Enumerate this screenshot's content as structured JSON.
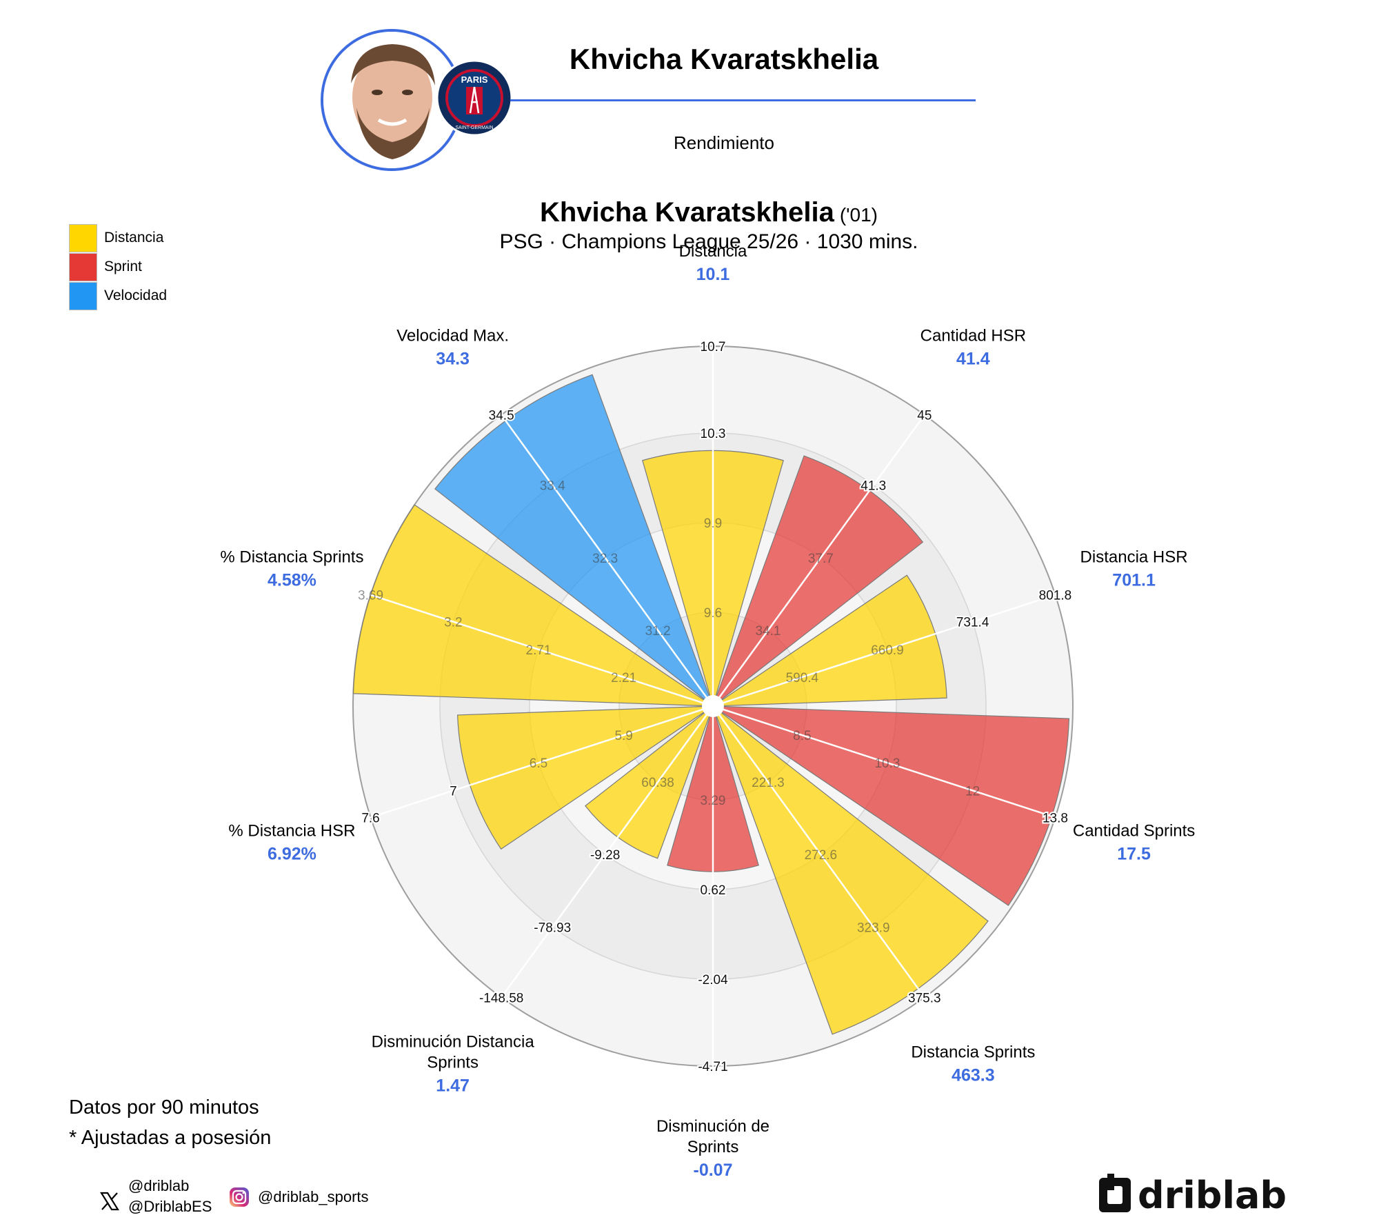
{
  "header": {
    "name": "Khvicha Kvaratskhelia",
    "subtitle": "Rendimiento",
    "badge_text": "PARIS",
    "badge_ring_text": "SAINT-GERMAIN"
  },
  "legend": [
    {
      "label": "Distancia",
      "color": "#ffd600"
    },
    {
      "label": "Sprint",
      "color": "#e53935"
    },
    {
      "label": "Velocidad",
      "color": "#2196f3"
    }
  ],
  "footnotes": [
    "Datos por 90 minutos",
    "* Ajustadas a posesión"
  ],
  "social": {
    "x_handles": [
      "@driblab",
      "@DriblabES"
    ],
    "instagram_handle": "@driblab_sports",
    "x_icon": "x-logo-icon",
    "instagram_icon": "instagram-icon"
  },
  "brand": {
    "logo": "driblab",
    "icon": "driblab-logo-icon"
  },
  "chart_data": {
    "type": "polar-bar",
    "title": "Khvicha Kvaratskhelia",
    "title_suffix": "('01)",
    "subtitle": "PSG · Champions League 25/26 · 1030 mins.",
    "categories": [
      {
        "label": [
          "Distancia"
        ],
        "value": 10.1,
        "display": "10.1",
        "group": "Distancia",
        "fill": 0.71,
        "ticks": [
          "9.6",
          "9.9",
          "10.3",
          "10.7"
        ]
      },
      {
        "label": [
          "Cantidad HSR"
        ],
        "value": 41.4,
        "display": "41.4",
        "group": "Sprint",
        "fill": 0.74,
        "ticks": [
          "34.1",
          "37.7",
          "41.3",
          "45"
        ]
      },
      {
        "label": [
          "Distancia HSR"
        ],
        "value": 701.1,
        "display": "701.1",
        "group": "Distancia",
        "fill": 0.65,
        "ticks": [
          "590.4",
          "660.9",
          "731.4",
          "801.8"
        ]
      },
      {
        "label": [
          "Cantidad Sprints"
        ],
        "value": 17.5,
        "display": "17.5",
        "group": "Sprint",
        "fill": 0.99,
        "ticks": [
          "8.5",
          "10.3",
          "12",
          "13.8"
        ]
      },
      {
        "label": [
          "Distancia Sprints"
        ],
        "value": 463.3,
        "display": "463.3",
        "group": "Distancia",
        "fill": 0.97,
        "ticks": [
          "221.3",
          "272.6",
          "323.9",
          "375.3"
        ]
      },
      {
        "label": [
          "Disminución de",
          "Sprints"
        ],
        "value": -0.07,
        "display": "-0.07",
        "group": "Sprint",
        "fill": 0.46,
        "ticks": [
          "3.29",
          "0.62",
          "-2.04",
          "-4.71"
        ]
      },
      {
        "label": [
          "Disminución Distancia",
          "Sprints"
        ],
        "value": 1.47,
        "display": "1.47",
        "group": "Distancia",
        "fill": 0.45,
        "ticks": [
          "60.38",
          "-9.28",
          "-78.93",
          "-148.58"
        ]
      },
      {
        "label": [
          "% Distancia HSR"
        ],
        "value": 6.92,
        "display": "6.92%",
        "group": "Distancia",
        "fill": 0.71,
        "ticks": [
          "5.9",
          "6.5",
          "7",
          "7.6"
        ]
      },
      {
        "label": [
          "% Distancia Sprints"
        ],
        "value": 4.58,
        "display": "4.58%",
        "group": "Distancia",
        "fill": 1.0,
        "ticks": [
          "2.21",
          "2.71",
          "3.2",
          "3.69"
        ]
      },
      {
        "label": [
          "Velocidad Max."
        ],
        "value": 34.3,
        "display": "34.3",
        "group": "Velocidad",
        "fill": 0.98,
        "ticks": [
          "31.2",
          "32.3",
          "33.4",
          "34.5"
        ]
      }
    ],
    "group_colors": {
      "Distancia": "#ffd600",
      "Sprint": "#e53935",
      "Velocidad": "#2196f3"
    }
  }
}
